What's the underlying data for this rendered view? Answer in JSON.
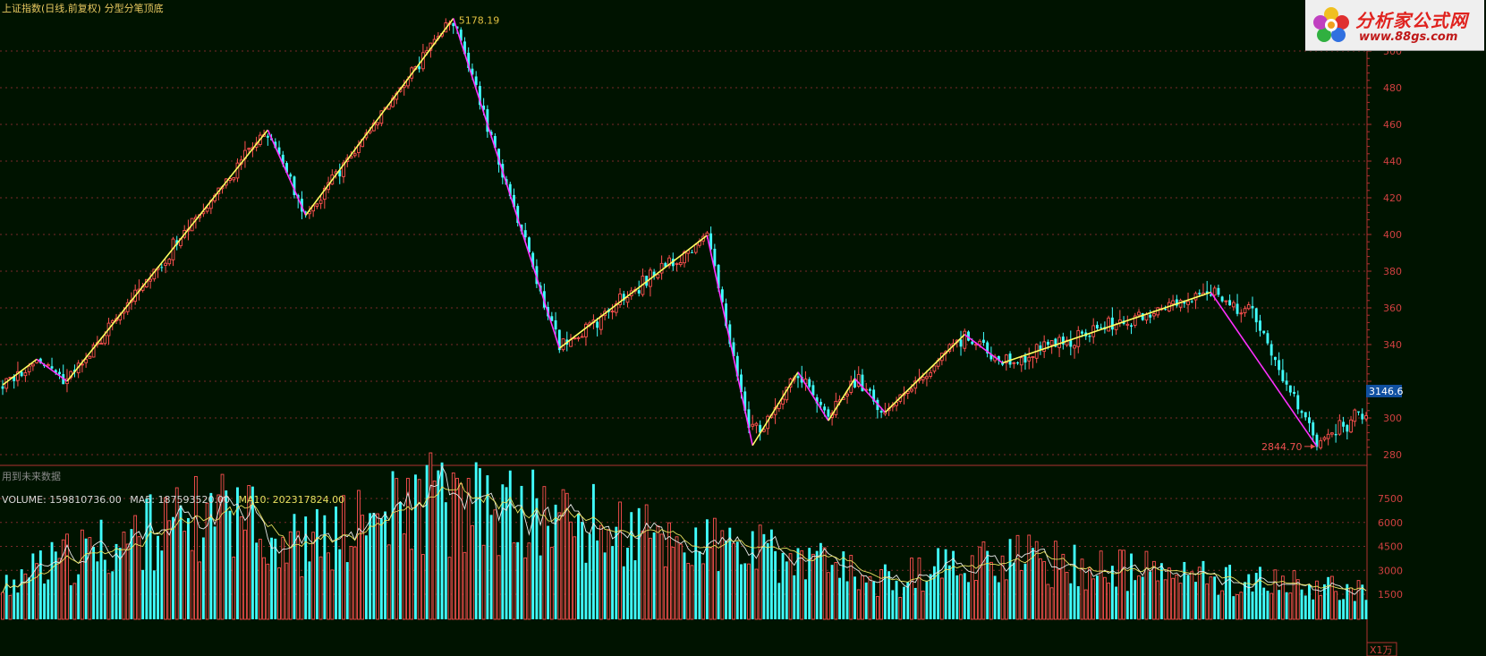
{
  "header": {
    "title": "上证指数(日线,前复权) 分型分笔顶底",
    "future_note": "用到未来数据"
  },
  "volume_header": {
    "volume_label": "VOLUME: 159810736.00",
    "ma5_label": "MA5: 187593520.00",
    "ma10_label": "MA10: 202317824.00"
  },
  "logo": {
    "name": "分析家公式网",
    "url": "www.88gs.com"
  },
  "colors": {
    "background": "#001300",
    "up": "#ff5050",
    "down": "#40ffff",
    "up_stroke_line": "#ffff60",
    "down_stroke_line": "#ff30ff",
    "grid": "#7a2a2a",
    "axis_text": "#d04040",
    "title": "#e8c860",
    "volume_label": "#d8d8d8",
    "ma5_label": "#d8d8d8",
    "ma10_label": "#e8e060"
  },
  "chart_data": [
    {
      "type": "candlestick",
      "title": "上证指数(日线,前复权) 分型分笔顶底",
      "ylim": [
        2700,
        5250
      ],
      "y_ticks": [
        2800,
        3000,
        3200,
        3400,
        3600,
        3800,
        4000,
        4200,
        4400,
        4600,
        4800,
        5000
      ],
      "y_tick_labels": [
        "280",
        "300",
        "",
        "340",
        "360",
        "380",
        "400",
        "420",
        "440",
        "460",
        "480",
        "500"
      ],
      "current_price_tag": "3146.6",
      "current_price": 3146.6,
      "annotations": [
        {
          "text": "5178.19",
          "index": 119,
          "value": 5178.19
        },
        {
          "text": "2844.70",
          "index": 347,
          "value": 2844.7
        }
      ],
      "anchors": [
        {
          "index": 0,
          "value": 3180
        },
        {
          "index": 9,
          "value": 3320
        },
        {
          "index": 17,
          "value": 3200
        },
        {
          "index": 70,
          "value": 4570
        },
        {
          "index": 80,
          "value": 4105
        },
        {
          "index": 119,
          "value": 5178.19
        },
        {
          "index": 147,
          "value": 3380
        },
        {
          "index": 186,
          "value": 3995
        },
        {
          "index": 198,
          "value": 2850
        },
        {
          "index": 210,
          "value": 3250
        },
        {
          "index": 218,
          "value": 2985
        },
        {
          "index": 225,
          "value": 3215
        },
        {
          "index": 233,
          "value": 3030
        },
        {
          "index": 254,
          "value": 3455
        },
        {
          "index": 264,
          "value": 3300
        },
        {
          "index": 319,
          "value": 3685
        },
        {
          "index": 331,
          "value": 3560
        },
        {
          "index": 347,
          "value": 2844.7
        },
        {
          "index": 357,
          "value": 3010
        }
      ],
      "strokes": [
        {
          "from_index": 0,
          "from_value": 3180,
          "to_index": 9,
          "to_value": 3320,
          "direction": "up"
        },
        {
          "from_index": 9,
          "from_value": 3320,
          "to_index": 17,
          "to_value": 3200,
          "direction": "down"
        },
        {
          "from_index": 17,
          "from_value": 3200,
          "to_index": 70,
          "to_value": 4570,
          "direction": "up"
        },
        {
          "from_index": 70,
          "from_value": 4570,
          "to_index": 80,
          "to_value": 4105,
          "direction": "down"
        },
        {
          "from_index": 80,
          "from_value": 4105,
          "to_index": 119,
          "to_value": 5178.19,
          "direction": "up"
        },
        {
          "from_index": 119,
          "from_value": 5178.19,
          "to_index": 147,
          "to_value": 3380,
          "direction": "down"
        },
        {
          "from_index": 147,
          "from_value": 3380,
          "to_index": 186,
          "to_value": 3995,
          "direction": "up"
        },
        {
          "from_index": 186,
          "from_value": 3995,
          "to_index": 198,
          "to_value": 2850,
          "direction": "down"
        },
        {
          "from_index": 198,
          "from_value": 2850,
          "to_index": 210,
          "to_value": 3250,
          "direction": "up"
        },
        {
          "from_index": 210,
          "from_value": 3250,
          "to_index": 218,
          "to_value": 2985,
          "direction": "down"
        },
        {
          "from_index": 218,
          "from_value": 2985,
          "to_index": 225,
          "to_value": 3215,
          "direction": "up"
        },
        {
          "from_index": 225,
          "from_value": 3215,
          "to_index": 233,
          "to_value": 3030,
          "direction": "down"
        },
        {
          "from_index": 233,
          "from_value": 3030,
          "to_index": 254,
          "to_value": 3455,
          "direction": "up"
        },
        {
          "from_index": 254,
          "from_value": 3455,
          "to_index": 264,
          "to_value": 3300,
          "direction": "down"
        },
        {
          "from_index": 264,
          "from_value": 3300,
          "to_index": 319,
          "to_value": 3685,
          "direction": "up"
        },
        {
          "from_index": 319,
          "from_value": 3685,
          "to_index": 347,
          "to_value": 2844.7,
          "direction": "down"
        }
      ]
    },
    {
      "type": "bar",
      "name": "VOLUME",
      "ylim": [
        0,
        9000
      ],
      "y_ticks": [
        1500,
        3000,
        4500,
        6000,
        7500
      ],
      "y_tick_labels": [
        "1500",
        "3000",
        "4500",
        "6000",
        "7500"
      ],
      "unit_label": "X1万",
      "series": [
        {
          "name": "VOLUME",
          "value": 159810736.0
        },
        {
          "name": "MA5",
          "value": 187593520.0
        },
        {
          "name": "MA10",
          "value": 202317824.0
        }
      ],
      "level_points": [
        {
          "index": 0,
          "value": 2200
        },
        {
          "index": 25,
          "value": 4300
        },
        {
          "index": 55,
          "value": 6300
        },
        {
          "index": 80,
          "value": 4500
        },
        {
          "index": 110,
          "value": 7000
        },
        {
          "index": 145,
          "value": 6300
        },
        {
          "index": 170,
          "value": 5000
        },
        {
          "index": 200,
          "value": 4000
        },
        {
          "index": 235,
          "value": 2200
        },
        {
          "index": 260,
          "value": 3800
        },
        {
          "index": 290,
          "value": 3100
        },
        {
          "index": 330,
          "value": 2300
        },
        {
          "index": 358,
          "value": 1600
        }
      ]
    }
  ]
}
